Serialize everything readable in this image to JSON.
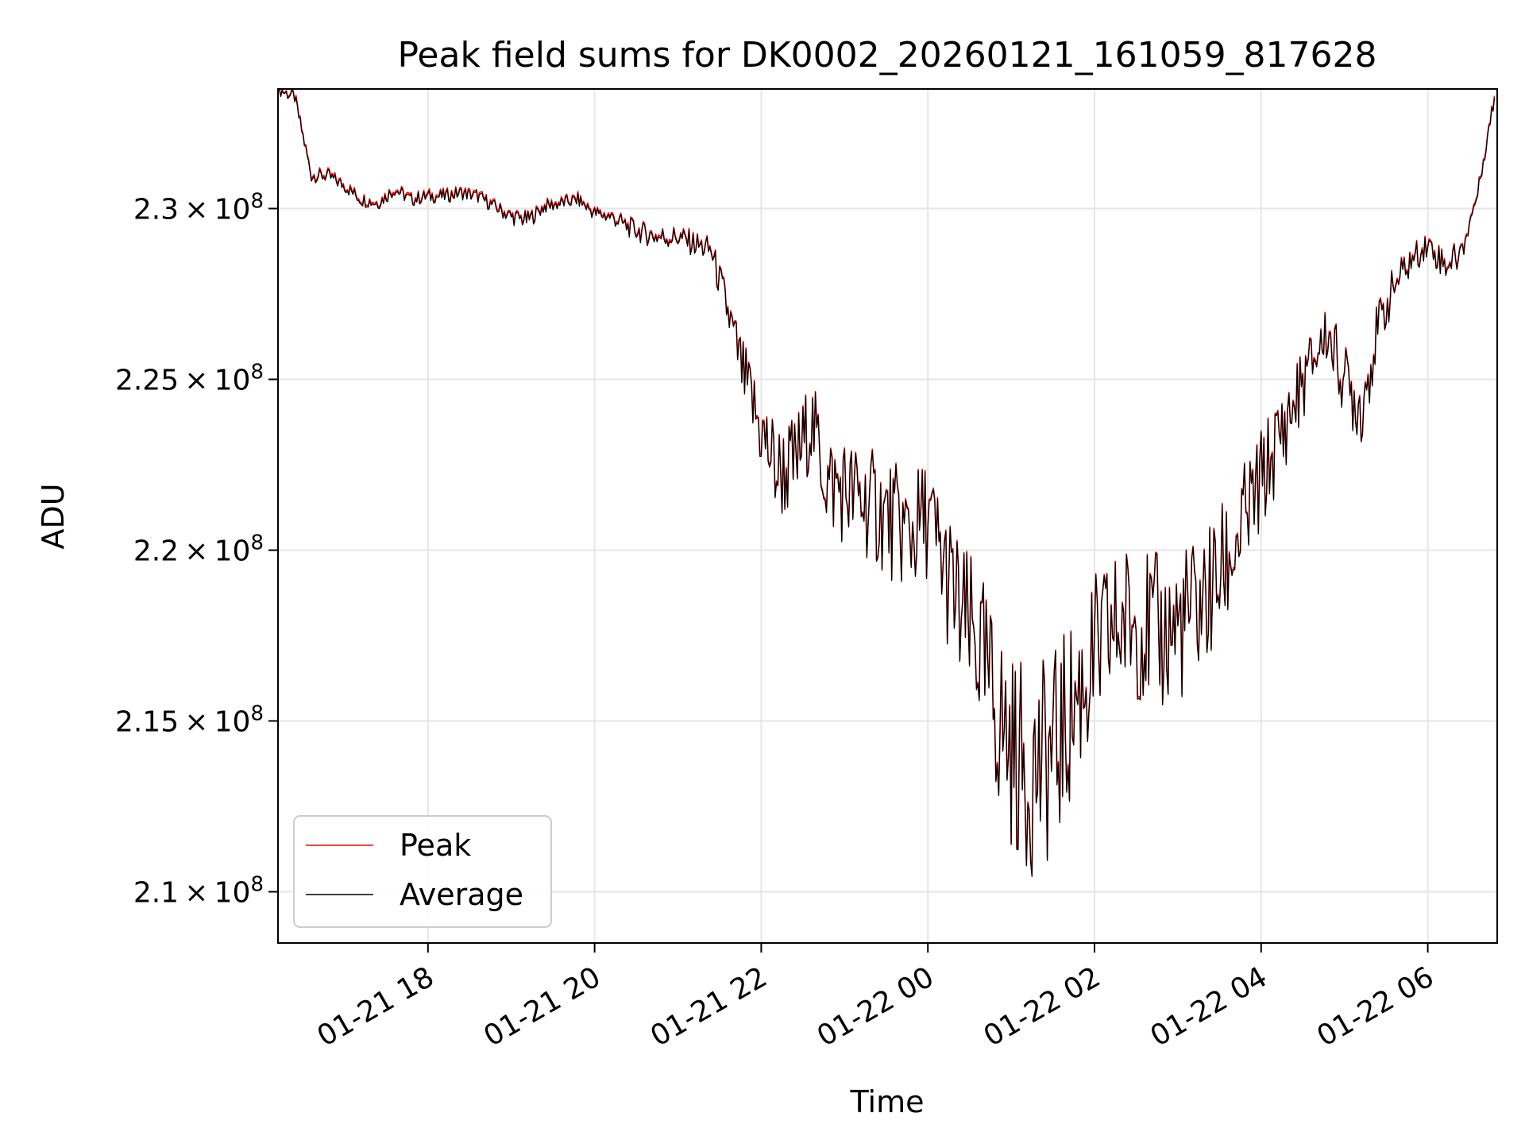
{
  "chart_data": {
    "type": "line",
    "title": "Peak field sums for DK0002_20260121_161059_817628",
    "xlabel": "Time",
    "ylabel": "ADU",
    "x_range": [
      "2026-01-21T16:12",
      "2026-01-22T06:50"
    ],
    "ylim": [
      208500000,
      233500000
    ],
    "x_ticks": [
      {
        "time": "2026-01-21T18:00",
        "label": "01-21 18"
      },
      {
        "time": "2026-01-21T20:00",
        "label": "01-21 20"
      },
      {
        "time": "2026-01-21T22:00",
        "label": "01-21 22"
      },
      {
        "time": "2026-01-22T00:00",
        "label": "01-22 00"
      },
      {
        "time": "2026-01-22T02:00",
        "label": "01-22 02"
      },
      {
        "time": "2026-01-22T04:00",
        "label": "01-22 04"
      },
      {
        "time": "2026-01-22T06:00",
        "label": "01-22 06"
      }
    ],
    "y_ticks": [
      {
        "value": 210000000,
        "mantissa": "2.1",
        "exponent": "8"
      },
      {
        "value": 215000000,
        "mantissa": "2.15",
        "exponent": "8"
      },
      {
        "value": 220000000,
        "mantissa": "2.2",
        "exponent": "8"
      },
      {
        "value": 225000000,
        "mantissa": "2.25",
        "exponent": "8"
      },
      {
        "value": 230000000,
        "mantissa": "2.3",
        "exponent": "8"
      }
    ],
    "times_label": "",
    "grid": true,
    "legend_position": "lower-left",
    "series": [
      {
        "name": "Peak",
        "color": "#ff0000",
        "x": [
          "2026-01-21T16:12",
          "2026-01-21T16:24",
          "2026-01-21T16:36",
          "2026-01-21T16:48",
          "2026-01-21T17:00",
          "2026-01-21T17:12",
          "2026-01-21T17:24",
          "2026-01-21T17:36",
          "2026-01-21T17:48",
          "2026-01-21T18:00",
          "2026-01-21T18:12",
          "2026-01-21T18:24",
          "2026-01-21T18:36",
          "2026-01-21T18:48",
          "2026-01-21T19:00",
          "2026-01-21T19:12",
          "2026-01-21T19:24",
          "2026-01-21T19:36",
          "2026-01-21T19:48",
          "2026-01-21T20:00",
          "2026-01-21T20:12",
          "2026-01-21T20:24",
          "2026-01-21T20:36",
          "2026-01-21T20:48",
          "2026-01-21T21:00",
          "2026-01-21T21:12",
          "2026-01-21T21:24",
          "2026-01-21T21:36",
          "2026-01-21T21:48",
          "2026-01-21T22:00",
          "2026-01-21T22:12",
          "2026-01-21T22:24",
          "2026-01-21T22:36",
          "2026-01-21T22:48",
          "2026-01-21T23:00",
          "2026-01-21T23:12",
          "2026-01-21T23:24",
          "2026-01-21T23:36",
          "2026-01-21T23:48",
          "2026-01-22T00:00",
          "2026-01-22T00:12",
          "2026-01-22T00:24",
          "2026-01-22T00:36",
          "2026-01-22T00:48",
          "2026-01-22T01:00",
          "2026-01-22T01:12",
          "2026-01-22T01:24",
          "2026-01-22T01:36",
          "2026-01-22T01:48",
          "2026-01-22T02:00",
          "2026-01-22T02:12",
          "2026-01-22T02:24",
          "2026-01-22T02:36",
          "2026-01-22T02:48",
          "2026-01-22T03:00",
          "2026-01-22T03:12",
          "2026-01-22T03:24",
          "2026-01-22T03:36",
          "2026-01-22T03:48",
          "2026-01-22T04:00",
          "2026-01-22T04:12",
          "2026-01-22T04:24",
          "2026-01-22T04:36",
          "2026-01-22T04:48",
          "2026-01-22T05:00",
          "2026-01-22T05:12",
          "2026-01-22T05:24",
          "2026-01-22T05:36",
          "2026-01-22T05:48",
          "2026-01-22T06:00",
          "2026-01-22T06:12",
          "2026-01-22T06:24",
          "2026-01-22T06:36",
          "2026-01-22T06:48"
        ],
        "values": [
          233500000,
          233300000,
          231000000,
          231000000,
          230700000,
          230300000,
          230200000,
          230600000,
          230300000,
          230400000,
          230400000,
          230500000,
          230400000,
          230100000,
          229800000,
          229700000,
          230100000,
          230200000,
          230300000,
          229900000,
          229800000,
          229500000,
          229300000,
          229200000,
          229200000,
          229000000,
          228800000,
          227000000,
          225000000,
          223500000,
          222300000,
          222500000,
          223800000,
          222000000,
          221800000,
          221500000,
          221200000,
          220800000,
          220500000,
          221000000,
          219500000,
          218000000,
          217200000,
          215500000,
          214200000,
          213500000,
          213800000,
          214500000,
          215800000,
          216800000,
          217600000,
          218000000,
          217800000,
          217500000,
          217800000,
          218200000,
          218800000,
          219700000,
          220800000,
          222000000,
          223200000,
          224300000,
          225500000,
          226400000,
          225000000,
          224200000,
          226500000,
          227800000,
          228500000,
          229000000,
          228400000,
          228700000,
          230500000,
          233300000
        ]
      },
      {
        "name": "Average",
        "color": "#000000",
        "x": [
          "2026-01-21T16:12",
          "2026-01-21T16:24",
          "2026-01-21T16:36",
          "2026-01-21T16:48",
          "2026-01-21T17:00",
          "2026-01-21T17:12",
          "2026-01-21T17:24",
          "2026-01-21T17:36",
          "2026-01-21T17:48",
          "2026-01-21T18:00",
          "2026-01-21T18:12",
          "2026-01-21T18:24",
          "2026-01-21T18:36",
          "2026-01-21T18:48",
          "2026-01-21T19:00",
          "2026-01-21T19:12",
          "2026-01-21T19:24",
          "2026-01-21T19:36",
          "2026-01-21T19:48",
          "2026-01-21T20:00",
          "2026-01-21T20:12",
          "2026-01-21T20:24",
          "2026-01-21T20:36",
          "2026-01-21T20:48",
          "2026-01-21T21:00",
          "2026-01-21T21:12",
          "2026-01-21T21:24",
          "2026-01-21T21:36",
          "2026-01-21T21:48",
          "2026-01-21T22:00",
          "2026-01-21T22:12",
          "2026-01-21T22:24",
          "2026-01-21T22:36",
          "2026-01-21T22:48",
          "2026-01-21T23:00",
          "2026-01-21T23:12",
          "2026-01-21T23:24",
          "2026-01-21T23:36",
          "2026-01-21T23:48",
          "2026-01-22T00:00",
          "2026-01-22T00:12",
          "2026-01-22T00:24",
          "2026-01-22T00:36",
          "2026-01-22T00:48",
          "2026-01-22T01:00",
          "2026-01-22T01:12",
          "2026-01-22T01:24",
          "2026-01-22T01:36",
          "2026-01-22T01:48",
          "2026-01-22T02:00",
          "2026-01-22T02:12",
          "2026-01-22T02:24",
          "2026-01-22T02:36",
          "2026-01-22T02:48",
          "2026-01-22T03:00",
          "2026-01-22T03:12",
          "2026-01-22T03:24",
          "2026-01-22T03:36",
          "2026-01-22T03:48",
          "2026-01-22T04:00",
          "2026-01-22T04:12",
          "2026-01-22T04:24",
          "2026-01-22T04:36",
          "2026-01-22T04:48",
          "2026-01-22T05:00",
          "2026-01-22T05:12",
          "2026-01-22T05:24",
          "2026-01-22T05:36",
          "2026-01-22T05:48",
          "2026-01-22T06:00",
          "2026-01-22T06:12",
          "2026-01-22T06:24",
          "2026-01-22T06:36",
          "2026-01-22T06:48"
        ],
        "values": [
          233500000,
          233250000,
          230950000,
          230950000,
          230650000,
          230250000,
          230150000,
          230550000,
          230250000,
          230350000,
          230350000,
          230450000,
          230350000,
          230050000,
          229750000,
          229650000,
          230050000,
          230150000,
          230250000,
          229850000,
          229750000,
          229450000,
          229250000,
          229150000,
          229150000,
          228950000,
          228750000,
          226950000,
          224950000,
          223450000,
          222250000,
          222450000,
          223750000,
          221950000,
          221750000,
          221450000,
          221150000,
          220750000,
          220450000,
          220950000,
          219450000,
          217950000,
          217150000,
          215450000,
          214150000,
          213450000,
          213750000,
          214450000,
          215750000,
          216750000,
          217550000,
          217950000,
          217750000,
          217450000,
          217750000,
          218150000,
          218750000,
          219650000,
          220750000,
          221950000,
          223150000,
          224250000,
          225450000,
          226350000,
          224950000,
          224150000,
          226450000,
          227750000,
          228450000,
          228950000,
          228350000,
          228650000,
          230450000,
          233250000
        ]
      }
    ]
  }
}
